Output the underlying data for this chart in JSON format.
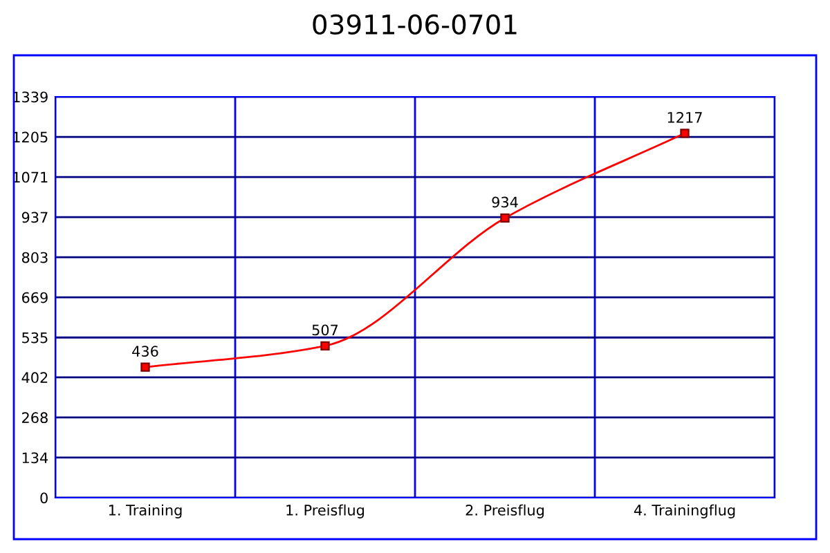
{
  "chart_data": {
    "type": "line",
    "title": "03911-06-0701",
    "categories": [
      "1. Training",
      "1. Preisflug",
      "2. Preisflug",
      "4. Trainingflug"
    ],
    "series": [
      {
        "color": "#ff0000",
        "values": [
          436,
          507,
          934,
          1217
        ]
      }
    ],
    "ylim": [
      0,
      1339
    ],
    "yticks": [
      0,
      134,
      268,
      402,
      535,
      669,
      803,
      937,
      1071,
      1205,
      1339
    ],
    "grid": true,
    "marker": "square",
    "line_style": "solid",
    "data_labels": true,
    "legend": false
  }
}
